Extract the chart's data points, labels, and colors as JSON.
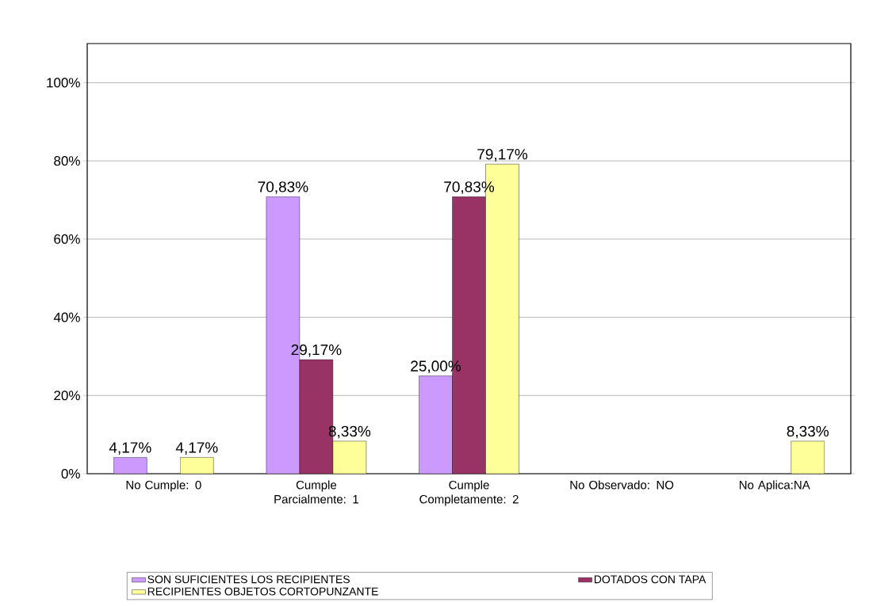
{
  "chart_data": {
    "type": "bar",
    "categories": [
      "No Cumple: 0",
      "Cumple Parcialmente: 1",
      "Cumple Completamente: 2",
      "No Observado: NO",
      "No Aplica:NA"
    ],
    "series": [
      {
        "name": "SON SUFICIENTES LOS RECIPIENTES",
        "color": "#cc99ff",
        "values": [
          4.17,
          70.83,
          25.0,
          null,
          null
        ],
        "value_labels": [
          "4,17%",
          "70,83%",
          "25,00%",
          null,
          null
        ]
      },
      {
        "name": "DOTADOS CON TAPA",
        "color": "#993366",
        "values": [
          null,
          29.17,
          70.83,
          null,
          null
        ],
        "value_labels": [
          null,
          "29,17%",
          "70,83%",
          null,
          null
        ]
      },
      {
        "name": "RECIPIENTES OBJETOS CORTOPUNZANTE",
        "color": "#ffff99",
        "values": [
          4.17,
          8.33,
          79.17,
          null,
          8.33
        ],
        "value_labels": [
          "4,17%",
          "8,33%",
          "79,17%",
          null,
          "8,33%"
        ]
      }
    ],
    "ylim": [
      0,
      110
    ],
    "yticks": [
      {
        "value": 0,
        "label": "0%"
      },
      {
        "value": 20,
        "label": "20%"
      },
      {
        "value": 40,
        "label": "40%"
      },
      {
        "value": 60,
        "label": "60%"
      },
      {
        "value": 80,
        "label": "80%"
      },
      {
        "value": 100,
        "label": "100%"
      }
    ],
    "grid": "y",
    "legend": "bottom"
  }
}
